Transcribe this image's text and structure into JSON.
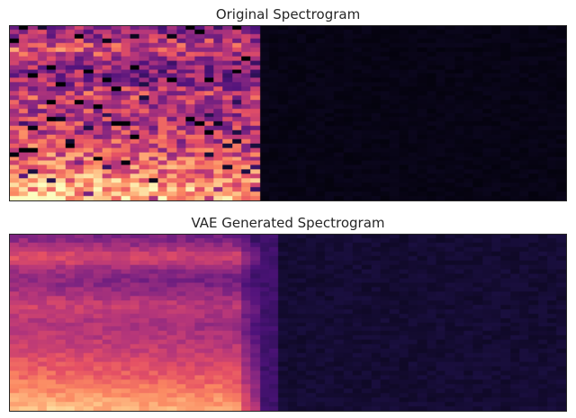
{
  "chart_data": [
    {
      "type": "heatmap",
      "title": "Original Spectrogram",
      "colormap": "magma",
      "columns": 60,
      "rows": 40,
      "signal_columns": 27,
      "description_values": "intensity is high near the bottom-left, mid-high band in the upper left, and near zero (black) for the right half"
    },
    {
      "type": "heatmap",
      "title": "VAE Generated Spectrogram",
      "colormap": "magma",
      "columns": 60,
      "rows": 40,
      "signal_columns": 27,
      "description_values": "smoothed reconstruction of the original; brightest in the lower left, very dark purple-black on the right half"
    }
  ]
}
